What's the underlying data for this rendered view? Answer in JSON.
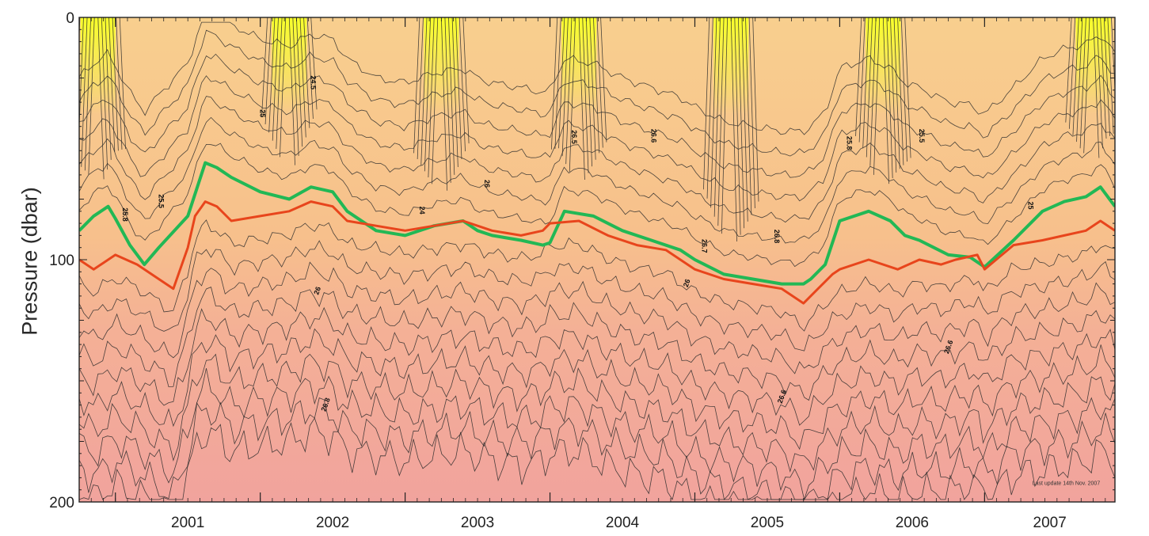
{
  "chart_data": {
    "type": "area",
    "title": "",
    "xlabel": "",
    "ylabel": "Pressure (dbar)",
    "x_tick_labels": [
      "2001",
      "2002",
      "2003",
      "2004",
      "2005",
      "2006",
      "2007"
    ],
    "y_tick_labels": [
      "0",
      "100",
      "200"
    ],
    "ylim": [
      200,
      0
    ],
    "xlim": [
      2000.75,
      2007.9
    ],
    "y_inverted": true,
    "grid": false,
    "colors": {
      "warm_surface": "#f8ff2a",
      "upper_band": "#f7c28c",
      "deep_band": "#f2a8a0",
      "contour_line": "#2c2c2c",
      "highlight_green": "#22b855",
      "highlight_red": "#e8451c"
    },
    "series": [
      {
        "label": "25.8",
        "color": "#22b855",
        "x": [
          2000.75,
          2000.85,
          2000.95,
          2001.0,
          2001.1,
          2001.2,
          2001.3,
          2001.5,
          2001.62,
          2001.7,
          2001.8,
          2002.0,
          2002.2,
          2002.35,
          2002.5,
          2002.6,
          2002.8,
          2003.0,
          2003.2,
          2003.4,
          2003.5,
          2003.6,
          2003.8,
          2003.95,
          2004.0,
          2004.1,
          2004.3,
          2004.5,
          2004.7,
          2004.9,
          2005.0,
          2005.2,
          2005.4,
          2005.6,
          2005.75,
          2005.8,
          2005.9,
          2006.0,
          2006.2,
          2006.35,
          2006.45,
          2006.55,
          2006.65,
          2006.75,
          2006.9,
          2007.0,
          2007.2,
          2007.4,
          2007.55,
          2007.7,
          2007.8,
          2007.9
        ],
        "y": [
          88,
          82,
          78,
          83,
          94,
          102,
          95,
          82,
          60,
          62,
          66,
          72,
          75,
          70,
          72,
          80,
          88,
          90,
          86,
          84,
          88,
          90,
          92,
          94,
          93,
          80,
          82,
          88,
          92,
          96,
          100,
          106,
          108,
          110,
          110,
          108,
          102,
          84,
          80,
          84,
          90,
          92,
          95,
          98,
          99,
          103,
          92,
          80,
          76,
          74,
          70,
          78
        ]
      },
      {
        "label": "26",
        "color": "#e8451c",
        "x": [
          2000.75,
          2000.85,
          2001.0,
          2001.15,
          2001.3,
          2001.4,
          2001.5,
          2001.55,
          2001.62,
          2001.7,
          2001.8,
          2002.0,
          2002.2,
          2002.35,
          2002.5,
          2002.6,
          2002.8,
          2003.0,
          2003.2,
          2003.4,
          2003.5,
          2003.6,
          2003.8,
          2003.95,
          2004.0,
          2004.2,
          2004.4,
          2004.6,
          2004.8,
          2005.0,
          2005.2,
          2005.4,
          2005.6,
          2005.75,
          2005.85,
          2005.95,
          2006.0,
          2006.2,
          2006.4,
          2006.55,
          2006.7,
          2006.8,
          2006.95,
          2007.0,
          2007.2,
          2007.4,
          2007.55,
          2007.7,
          2007.8,
          2007.9
        ],
        "y": [
          100,
          104,
          98,
          102,
          108,
          112,
          95,
          82,
          76,
          78,
          84,
          82,
          80,
          76,
          78,
          84,
          86,
          88,
          86,
          84,
          86,
          88,
          90,
          88,
          85,
          84,
          90,
          94,
          96,
          104,
          108,
          110,
          112,
          118,
          112,
          106,
          104,
          100,
          104,
          100,
          102,
          100,
          98,
          104,
          94,
          92,
          90,
          88,
          84,
          88
        ]
      }
    ],
    "contour_labels": [
      "25.8",
      "25.5",
      "25",
      "24.5",
      "24",
      "26",
      "26.5",
      "26.6",
      "26.7",
      "26.8"
    ],
    "annotation": "Last update 14th Nov. 2007"
  }
}
